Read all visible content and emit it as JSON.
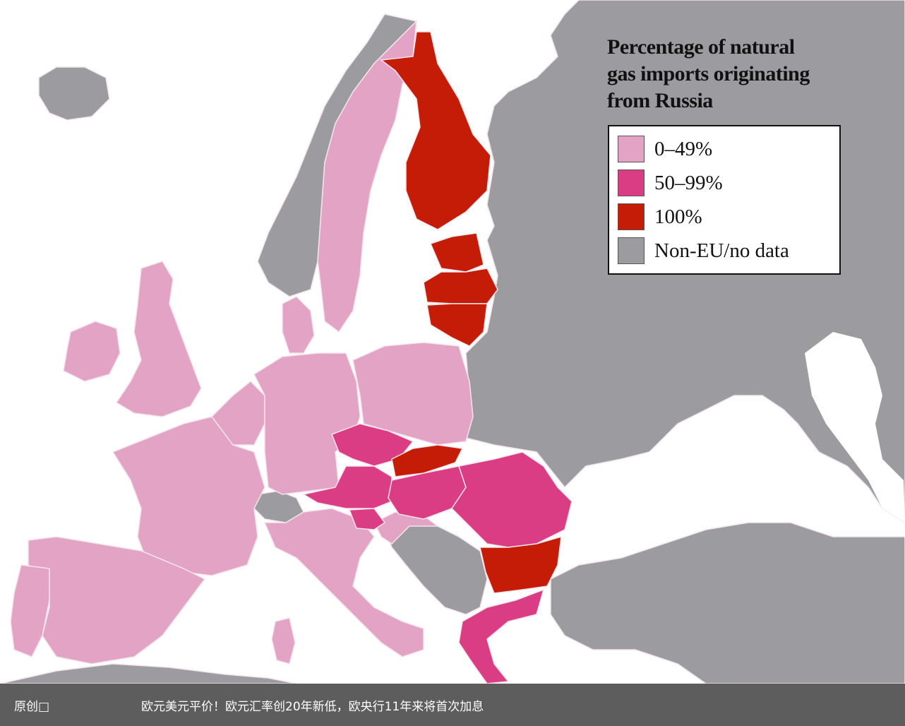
{
  "map": {
    "title_lines": [
      "Percentage of natural",
      "gas imports originating",
      "from Russia"
    ],
    "legend": [
      {
        "label": "0–49%",
        "color": "#e2a3c4"
      },
      {
        "label": "50–99%",
        "color": "#db3d84"
      },
      {
        "label": "100%",
        "color": "#c41c06"
      },
      {
        "label": "Non-EU/no data",
        "color": "#9c9ca0"
      }
    ],
    "colors": {
      "sea": "#ffffff",
      "land_other": "#9c9ca0",
      "low": "#e2a3c4",
      "mid": "#db3d84",
      "full": "#c41c06"
    },
    "regions": [
      {
        "name": "Finland",
        "category": "100%"
      },
      {
        "name": "Estonia",
        "category": "100%"
      },
      {
        "name": "Latvia",
        "category": "100%"
      },
      {
        "name": "Lithuania",
        "category": "100%"
      },
      {
        "name": "Slovakia",
        "category": "100%"
      },
      {
        "name": "Bulgaria",
        "category": "100%"
      },
      {
        "name": "Czech Republic",
        "category": "50–99%"
      },
      {
        "name": "Austria",
        "category": "50–99%"
      },
      {
        "name": "Slovenia",
        "category": "50–99%"
      },
      {
        "name": "Hungary",
        "category": "50–99%"
      },
      {
        "name": "Romania",
        "category": "50–99%"
      },
      {
        "name": "Greece",
        "category": "50–99%"
      },
      {
        "name": "Sweden",
        "category": "0–49%"
      },
      {
        "name": "Denmark",
        "category": "0–49%"
      },
      {
        "name": "United Kingdom",
        "category": "0–49%"
      },
      {
        "name": "Ireland",
        "category": "0–49%"
      },
      {
        "name": "Netherlands",
        "category": "0–49%"
      },
      {
        "name": "Belgium",
        "category": "0–49%"
      },
      {
        "name": "Germany",
        "category": "0–49%"
      },
      {
        "name": "Poland",
        "category": "0–49%"
      },
      {
        "name": "France",
        "category": "0–49%"
      },
      {
        "name": "Spain",
        "category": "0–49%"
      },
      {
        "name": "Portugal",
        "category": "0–49%"
      },
      {
        "name": "Italy",
        "category": "0–49%"
      }
    ]
  },
  "caption": {
    "left": "原创□",
    "main": "欧元美元平价！欧元汇率创20年新低，欧央行11年来将首次加息"
  }
}
